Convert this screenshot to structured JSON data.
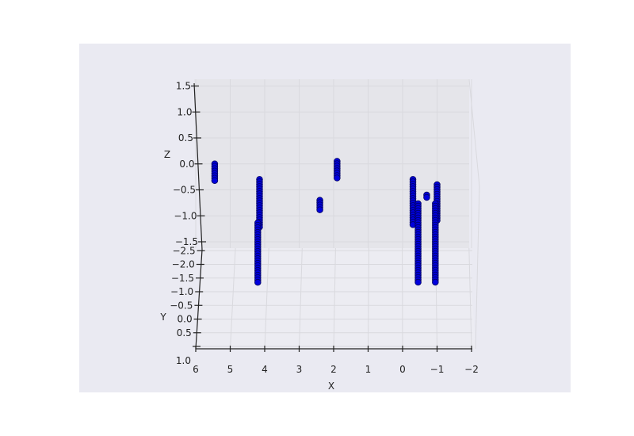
{
  "chart_data": {
    "type": "scatter",
    "projection": "3d",
    "title": "",
    "xlabel": "X",
    "ylabel": "Y",
    "zlabel": "Z",
    "xlim": [
      6,
      -2
    ],
    "ylim": [
      1.0,
      -2.5
    ],
    "zlim": [
      -1.5,
      1.5
    ],
    "x_ticks": [
      "6",
      "5",
      "4",
      "3",
      "2",
      "1",
      "0",
      "−1",
      "−2"
    ],
    "y_ticks": [
      "1.0",
      "0.5",
      "0.0",
      "−0.5",
      "−1.0",
      "−1.5",
      "−2.0",
      "−2.5"
    ],
    "z_ticks": [
      "1.5",
      "1.0",
      "0.5",
      "0.0",
      "−0.5",
      "−1.0",
      "−1.5"
    ],
    "grid": true,
    "colors": {
      "figure_bg": "#eaeaf2",
      "pane_back": "#e5e5ea",
      "pane_floor": "#ececf2",
      "grid": "#d9d9de",
      "marker_fill": "#0000dd",
      "marker_edge": "#000066",
      "axis_line": "#222222"
    },
    "series": [
      {
        "marker": "o",
        "point_groups": [
          {
            "x": 5.45,
            "z_min": -0.35,
            "z_max": 0.0
          },
          {
            "x": 4.15,
            "z_min": -1.25,
            "z_max": -0.3
          },
          {
            "x": 4.2,
            "y_min": -1.2,
            "y_max": 0.3
          },
          {
            "x": 2.4,
            "z_min": -0.9,
            "z_max": -0.7
          },
          {
            "x": 1.9,
            "z_min": -0.3,
            "z_max": 0.05
          },
          {
            "x": -0.3,
            "z_min": -1.2,
            "z_max": -0.3
          },
          {
            "x": -0.45,
            "y_min": -1.9,
            "y_max": 0.3
          },
          {
            "x": -0.7,
            "z_min": -0.65,
            "z_max": -0.6
          },
          {
            "x": -1.0,
            "z_min": -1.1,
            "z_max": -0.4
          },
          {
            "x": -0.95,
            "y_min": -1.9,
            "y_max": 0.25
          }
        ]
      }
    ]
  }
}
